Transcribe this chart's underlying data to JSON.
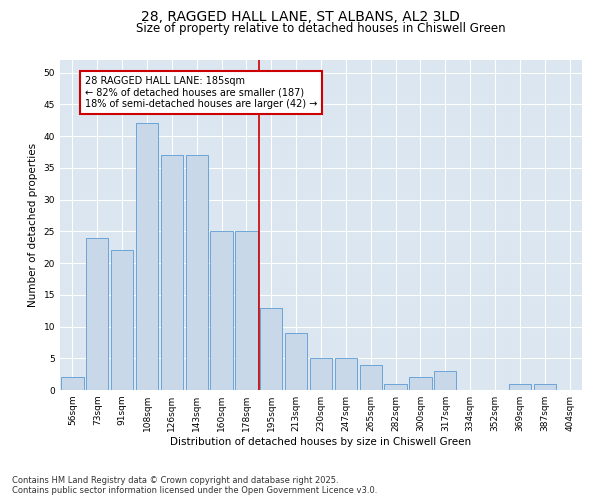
{
  "title1": "28, RAGGED HALL LANE, ST ALBANS, AL2 3LD",
  "title2": "Size of property relative to detached houses in Chiswell Green",
  "xlabel": "Distribution of detached houses by size in Chiswell Green",
  "ylabel": "Number of detached properties",
  "categories": [
    "56sqm",
    "73sqm",
    "91sqm",
    "108sqm",
    "126sqm",
    "143sqm",
    "160sqm",
    "178sqm",
    "195sqm",
    "213sqm",
    "230sqm",
    "247sqm",
    "265sqm",
    "282sqm",
    "300sqm",
    "317sqm",
    "334sqm",
    "352sqm",
    "369sqm",
    "387sqm",
    "404sqm"
  ],
  "values": [
    2,
    24,
    22,
    42,
    37,
    37,
    25,
    25,
    13,
    9,
    5,
    5,
    4,
    1,
    2,
    3,
    0,
    0,
    1,
    1,
    0
  ],
  "bar_color": "#c8d8e8",
  "bar_edge_color": "#5b9bd5",
  "vline_color": "#cc0000",
  "annotation_line1": "28 RAGGED HALL LANE: 185sqm",
  "annotation_line2": "← 82% of detached houses are smaller (187)",
  "annotation_line3": "18% of semi-detached houses are larger (42) →",
  "annotation_box_color": "#cc0000",
  "background_color": "#dce6f0",
  "ylim": [
    0,
    52
  ],
  "yticks": [
    0,
    5,
    10,
    15,
    20,
    25,
    30,
    35,
    40,
    45,
    50
  ],
  "footer1": "Contains HM Land Registry data © Crown copyright and database right 2025.",
  "footer2": "Contains public sector information licensed under the Open Government Licence v3.0.",
  "title1_fontsize": 10,
  "title2_fontsize": 8.5,
  "xlabel_fontsize": 7.5,
  "ylabel_fontsize": 7.5,
  "tick_fontsize": 6.5,
  "annotation_fontsize": 7,
  "footer_fontsize": 6
}
